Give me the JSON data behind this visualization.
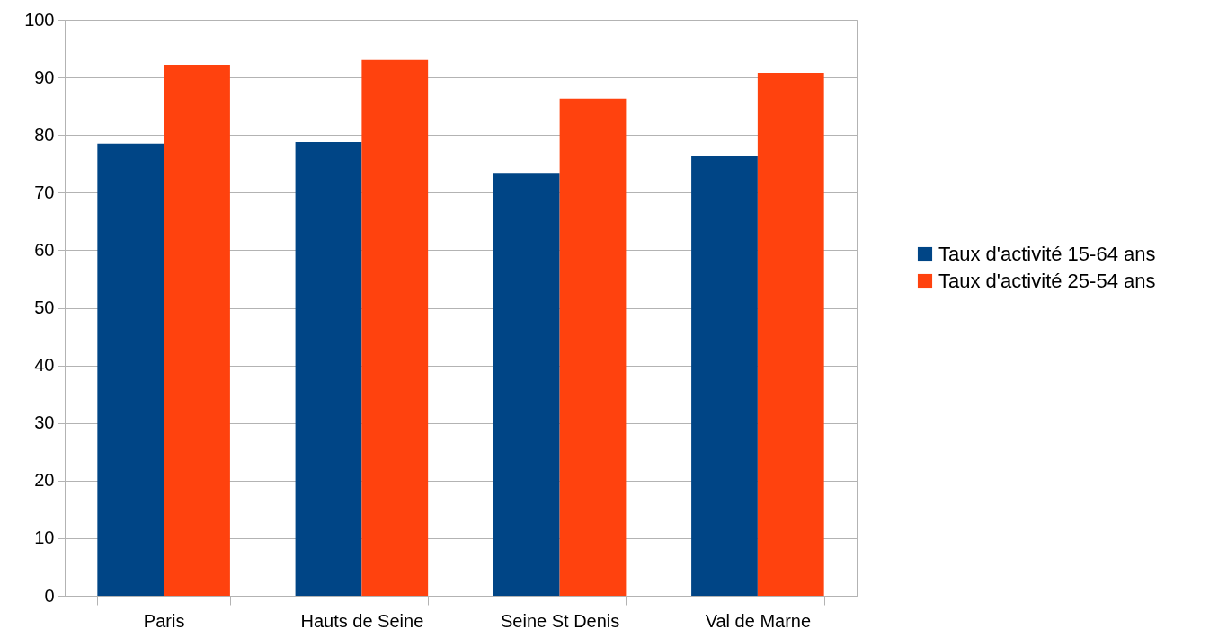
{
  "chart_data": {
    "type": "bar",
    "categories": [
      "Paris",
      "Hauts de Seine",
      "Seine St Denis",
      "Val de Marne"
    ],
    "series": [
      {
        "name": "Taux d'activité 15-64 ans",
        "color": "#004586",
        "values": [
          78.5,
          78.8,
          73.3,
          76.3
        ]
      },
      {
        "name": "Taux d'activité 25-54 ans",
        "color": "#ff420e",
        "values": [
          92.2,
          93.0,
          86.3,
          90.8
        ]
      }
    ],
    "ylim": [
      0,
      100
    ],
    "yticks": [
      0,
      10,
      20,
      30,
      40,
      50,
      60,
      70,
      80,
      90,
      100
    ],
    "grid": "y",
    "legend": "right"
  }
}
